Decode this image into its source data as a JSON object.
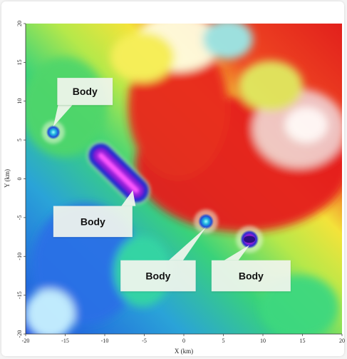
{
  "chart_data": {
    "type": "heatmap",
    "title": "",
    "xlabel": "X (km)",
    "ylabel": "Y (km)",
    "xlim": [
      -20,
      20
    ],
    "ylim": [
      -20,
      20
    ],
    "x_ticks": [
      -20,
      -15,
      -10,
      -5,
      0,
      5,
      10,
      15,
      20
    ],
    "y_ticks": [
      -20,
      -15,
      -10,
      -5,
      0,
      5,
      10,
      15,
      20
    ],
    "grid": false,
    "colorscale": "rainbow (blue low - green - yellow - red - white high)",
    "anomalies": [
      {
        "label": "Body",
        "shape": "point",
        "x": -16.5,
        "y": 6
      },
      {
        "label": "Body",
        "shape": "elongated",
        "x_start": -10.5,
        "y_start": 3,
        "x_end": -6,
        "y_end": -1.5
      },
      {
        "label": "Body",
        "shape": "point",
        "x": 2.8,
        "y": -5.5
      },
      {
        "label": "Body",
        "shape": "point",
        "x": 8.3,
        "y": -7.8
      }
    ],
    "callouts": [
      {
        "text": "Body",
        "target": 0,
        "box_x": [
          -16,
          -9
        ],
        "box_y": [
          13,
          9.5
        ],
        "pointer": [
          -15,
          9.5
        ]
      },
      {
        "text": "Body",
        "target": 1,
        "box_x": [
          -16.5,
          -6.5
        ],
        "box_y": [
          -3.5,
          -7.5
        ],
        "pointer": [
          -7,
          -3.5
        ]
      },
      {
        "text": "Body",
        "target": 2,
        "box_x": [
          -8,
          1.5
        ],
        "box_y": [
          -10.5,
          -14.5
        ],
        "pointer": [
          -1,
          -10.5
        ]
      },
      {
        "text": "Body",
        "target": 3,
        "box_x": [
          3.5,
          13.5
        ],
        "box_y": [
          -10.5,
          -14.5
        ],
        "pointer": [
          6,
          -10.5
        ]
      }
    ]
  }
}
